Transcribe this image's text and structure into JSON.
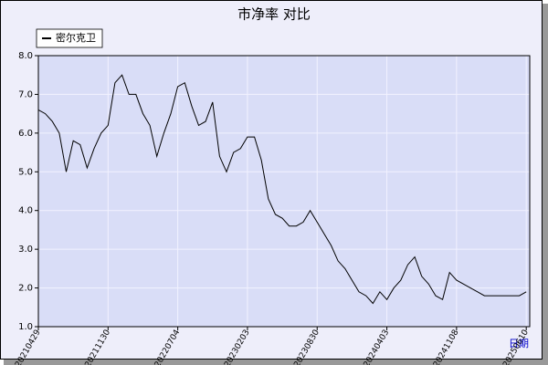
{
  "chart_data": {
    "type": "line",
    "title": "市净率  对比",
    "x_label": "日期",
    "categories": [
      "20210429",
      null,
      null,
      null,
      null,
      null,
      null,
      null,
      null,
      null,
      "20211130",
      null,
      null,
      null,
      null,
      null,
      null,
      null,
      null,
      null,
      "20220704",
      null,
      null,
      null,
      null,
      null,
      null,
      null,
      null,
      null,
      "20230203",
      null,
      null,
      null,
      null,
      null,
      null,
      null,
      null,
      null,
      "20230830",
      null,
      null,
      null,
      null,
      null,
      null,
      null,
      null,
      null,
      "20240403",
      null,
      null,
      null,
      null,
      null,
      null,
      null,
      null,
      null,
      "20241108",
      null,
      null,
      null,
      null,
      null,
      null,
      null,
      null,
      null,
      "20250610"
    ],
    "series": [
      {
        "name": "密尔克卫",
        "color": "#000000",
        "values": [
          6.6,
          6.5,
          6.3,
          6.0,
          5.0,
          5.8,
          5.7,
          5.1,
          5.6,
          6.0,
          6.2,
          7.3,
          7.5,
          7.0,
          7.0,
          6.5,
          6.2,
          5.4,
          6.0,
          6.5,
          7.2,
          7.3,
          6.7,
          6.2,
          6.3,
          6.8,
          5.4,
          5.0,
          5.5,
          5.6,
          5.9,
          5.9,
          5.3,
          4.3,
          3.9,
          3.8,
          3.6,
          3.6,
          3.7,
          4.0,
          3.7,
          3.4,
          3.1,
          2.7,
          2.5,
          2.2,
          1.9,
          1.8,
          1.6,
          1.9,
          1.7,
          2.0,
          2.2,
          2.6,
          2.8,
          2.3,
          2.1,
          1.8,
          1.7,
          2.4,
          2.2,
          2.1,
          2.0,
          1.9,
          1.8,
          1.8,
          1.8,
          1.8,
          1.8,
          1.8,
          1.9
        ]
      }
    ],
    "ylim": [
      1.0,
      8.0
    ],
    "yticks": [
      {
        "value": 1,
        "label": "1.0"
      },
      {
        "value": 2,
        "label": "2.0"
      },
      {
        "value": 3,
        "label": "3.0"
      },
      {
        "value": 4,
        "label": "4.0"
      },
      {
        "value": 5,
        "label": "5.0"
      },
      {
        "value": 6,
        "label": "6.0"
      },
      {
        "value": 7,
        "label": "7.0"
      },
      {
        "value": 8,
        "label": "8.0"
      }
    ],
    "grid": true
  }
}
